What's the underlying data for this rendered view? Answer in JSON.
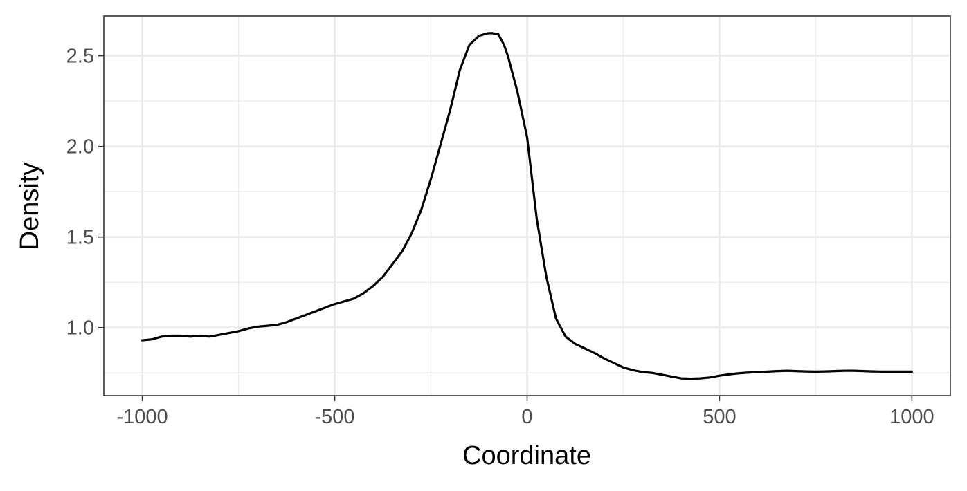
{
  "chart_data": {
    "type": "line",
    "title": "",
    "xlabel": "Coordinate",
    "ylabel": "Density",
    "xlim": [
      -1100,
      1100
    ],
    "ylim": [
      0.625,
      2.72
    ],
    "x_ticks": [
      -1000,
      -500,
      0,
      500,
      1000
    ],
    "x_tick_labels": [
      "-1000",
      "-500",
      "0",
      "500",
      "1000"
    ],
    "y_ticks": [
      1.0,
      1.5,
      2.0,
      2.5
    ],
    "y_tick_labels": [
      "1.0",
      "1.5",
      "2.0",
      "2.5"
    ],
    "x_minor_ticks": [
      -750,
      -250,
      250,
      750
    ],
    "y_minor_ticks": [
      0.75,
      1.25,
      1.75,
      2.25
    ],
    "grid": true,
    "legend": "none",
    "line_color": "#000000",
    "series": [
      {
        "x": [
          -1000,
          -975,
          -950,
          -925,
          -900,
          -875,
          -850,
          -825,
          -800,
          -775,
          -750,
          -725,
          -700,
          -675,
          -650,
          -625,
          -600,
          -575,
          -550,
          -525,
          -500,
          -475,
          -450,
          -425,
          -400,
          -375,
          -350,
          -325,
          -300,
          -275,
          -250,
          -225,
          -200,
          -175,
          -150,
          -125,
          -110,
          -100,
          -90,
          -80,
          -75,
          -70,
          -60,
          -50,
          -40,
          -25,
          0,
          25,
          50,
          75,
          100,
          125,
          150,
          175,
          200,
          225,
          250,
          275,
          300,
          325,
          350,
          375,
          400,
          425,
          450,
          475,
          500,
          525,
          550,
          575,
          600,
          625,
          650,
          675,
          700,
          725,
          750,
          775,
          800,
          825,
          850,
          875,
          900,
          925,
          950,
          975,
          1000
        ],
        "values": [
          0.93,
          0.935,
          0.95,
          0.955,
          0.955,
          0.95,
          0.955,
          0.95,
          0.96,
          0.97,
          0.98,
          0.995,
          1.005,
          1.01,
          1.015,
          1.03,
          1.05,
          1.07,
          1.09,
          1.11,
          1.13,
          1.145,
          1.16,
          1.19,
          1.23,
          1.28,
          1.35,
          1.42,
          1.52,
          1.65,
          1.82,
          2.01,
          2.2,
          2.42,
          2.56,
          2.61,
          2.62,
          2.625,
          2.625,
          2.62,
          2.62,
          2.6,
          2.56,
          2.5,
          2.42,
          2.3,
          2.05,
          1.6,
          1.28,
          1.05,
          0.95,
          0.91,
          0.885,
          0.86,
          0.83,
          0.805,
          0.78,
          0.765,
          0.755,
          0.75,
          0.74,
          0.73,
          0.72,
          0.718,
          0.72,
          0.725,
          0.735,
          0.742,
          0.748,
          0.752,
          0.755,
          0.757,
          0.76,
          0.762,
          0.76,
          0.758,
          0.757,
          0.758,
          0.76,
          0.762,
          0.762,
          0.76,
          0.758,
          0.757,
          0.757,
          0.757,
          0.757
        ]
      }
    ]
  }
}
